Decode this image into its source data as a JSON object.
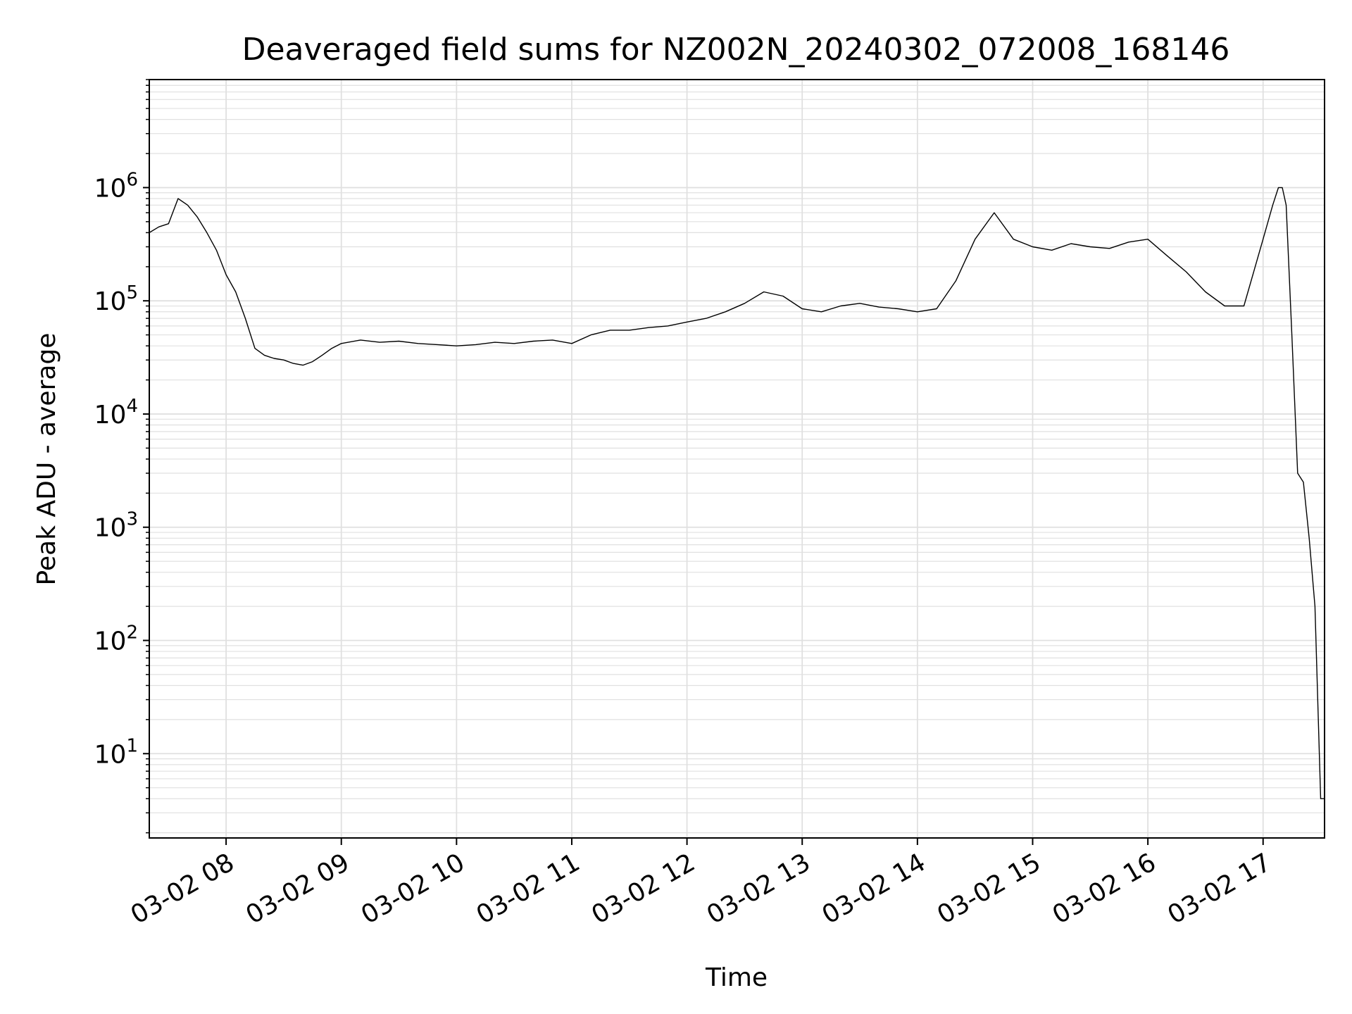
{
  "chart_data": {
    "type": "line",
    "title": "Deaveraged field sums for NZ002N_20240302_072008_168146",
    "xlabel": "Time",
    "ylabel": "Peak ADU - average",
    "yscale": "log",
    "xlim": [
      "03-02 07:20",
      "03-02 17:32"
    ],
    "ylim": [
      1.8,
      9000000
    ],
    "grid": true,
    "grid_minor": true,
    "line_color": "#000000",
    "grid_color": "#e0e0e0",
    "x_ticks": [
      {
        "value": "03-02 08",
        "label": "03-02 08"
      },
      {
        "value": "03-02 09",
        "label": "03-02 09"
      },
      {
        "value": "03-02 10",
        "label": "03-02 10"
      },
      {
        "value": "03-02 11",
        "label": "03-02 11"
      },
      {
        "value": "03-02 12",
        "label": "03-02 12"
      },
      {
        "value": "03-02 13",
        "label": "03-02 13"
      },
      {
        "value": "03-02 14",
        "label": "03-02 14"
      },
      {
        "value": "03-02 15",
        "label": "03-02 15"
      },
      {
        "value": "03-02 16",
        "label": "03-02 16"
      },
      {
        "value": "03-02 17",
        "label": "03-02 17"
      }
    ],
    "y_ticks": [
      {
        "value": 10,
        "base": "10",
        "exp": "1"
      },
      {
        "value": 100,
        "base": "10",
        "exp": "2"
      },
      {
        "value": 1000,
        "base": "10",
        "exp": "3"
      },
      {
        "value": 10000,
        "base": "10",
        "exp": "4"
      },
      {
        "value": 100000,
        "base": "10",
        "exp": "5"
      },
      {
        "value": 1000000,
        "base": "10",
        "exp": "6"
      }
    ],
    "series": [
      {
        "points": [
          [
            "03-02 07:20",
            400000
          ],
          [
            "03-02 07:25",
            450000
          ],
          [
            "03-02 07:30",
            480000
          ],
          [
            "03-02 07:35",
            800000
          ],
          [
            "03-02 07:40",
            700000
          ],
          [
            "03-02 07:45",
            550000
          ],
          [
            "03-02 07:50",
            400000
          ],
          [
            "03-02 07:55",
            280000
          ],
          [
            "03-02 08:00",
            170000
          ],
          [
            "03-02 08:05",
            120000
          ],
          [
            "03-02 08:10",
            70000
          ],
          [
            "03-02 08:15",
            38000
          ],
          [
            "03-02 08:20",
            33000
          ],
          [
            "03-02 08:25",
            31000
          ],
          [
            "03-02 08:30",
            30000
          ],
          [
            "03-02 08:35",
            28000
          ],
          [
            "03-02 08:40",
            27000
          ],
          [
            "03-02 08:45",
            29000
          ],
          [
            "03-02 08:50",
            33000
          ],
          [
            "03-02 08:55",
            38000
          ],
          [
            "03-02 09:00",
            42000
          ],
          [
            "03-02 09:10",
            45000
          ],
          [
            "03-02 09:20",
            43000
          ],
          [
            "03-02 09:30",
            44000
          ],
          [
            "03-02 09:40",
            42000
          ],
          [
            "03-02 09:50",
            41000
          ],
          [
            "03-02 10:00",
            40000
          ],
          [
            "03-02 10:10",
            41000
          ],
          [
            "03-02 10:20",
            43000
          ],
          [
            "03-02 10:30",
            42000
          ],
          [
            "03-02 10:40",
            44000
          ],
          [
            "03-02 10:50",
            45000
          ],
          [
            "03-02 11:00",
            42000
          ],
          [
            "03-02 11:10",
            50000
          ],
          [
            "03-02 11:20",
            55000
          ],
          [
            "03-02 11:30",
            55000
          ],
          [
            "03-02 11:40",
            58000
          ],
          [
            "03-02 11:50",
            60000
          ],
          [
            "03-02 12:00",
            65000
          ],
          [
            "03-02 12:10",
            70000
          ],
          [
            "03-02 12:20",
            80000
          ],
          [
            "03-02 12:30",
            95000
          ],
          [
            "03-02 12:40",
            120000
          ],
          [
            "03-02 12:50",
            110000
          ],
          [
            "03-02 13:00",
            85000
          ],
          [
            "03-02 13:10",
            80000
          ],
          [
            "03-02 13:20",
            90000
          ],
          [
            "03-02 13:30",
            95000
          ],
          [
            "03-02 13:40",
            88000
          ],
          [
            "03-02 13:50",
            85000
          ],
          [
            "03-02 14:00",
            80000
          ],
          [
            "03-02 14:10",
            85000
          ],
          [
            "03-02 14:20",
            150000
          ],
          [
            "03-02 14:30",
            350000
          ],
          [
            "03-02 14:40",
            600000
          ],
          [
            "03-02 14:50",
            350000
          ],
          [
            "03-02 15:00",
            300000
          ],
          [
            "03-02 15:10",
            280000
          ],
          [
            "03-02 15:20",
            320000
          ],
          [
            "03-02 15:30",
            300000
          ],
          [
            "03-02 15:40",
            290000
          ],
          [
            "03-02 15:50",
            330000
          ],
          [
            "03-02 16:00",
            350000
          ],
          [
            "03-02 16:10",
            250000
          ],
          [
            "03-02 16:20",
            180000
          ],
          [
            "03-02 16:30",
            120000
          ],
          [
            "03-02 16:40",
            90000
          ],
          [
            "03-02 16:50",
            90000
          ],
          [
            "03-02 17:00",
            350000
          ],
          [
            "03-02 17:05",
            700000
          ],
          [
            "03-02 17:08",
            1000000
          ],
          [
            "03-02 17:10",
            1000000
          ],
          [
            "03-02 17:12",
            700000
          ],
          [
            "03-02 17:15",
            50000
          ],
          [
            "03-02 17:18",
            3000
          ],
          [
            "03-02 17:21",
            2500
          ],
          [
            "03-02 17:24",
            800
          ],
          [
            "03-02 17:27",
            200
          ],
          [
            "03-02 17:30",
            4
          ],
          [
            "03-02 17:32",
            4
          ]
        ]
      }
    ]
  }
}
